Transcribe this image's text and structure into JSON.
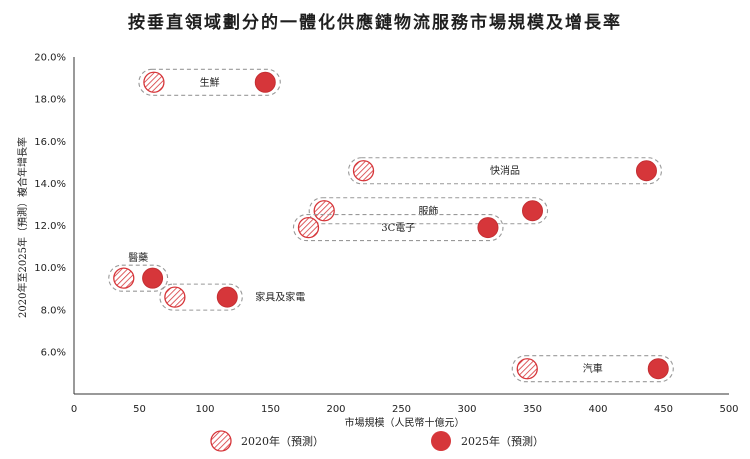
{
  "chart_data": {
    "type": "scatter",
    "title": "按垂直領域劃分的一體化供應鏈物流服務市場規模及增長率",
    "xlabel": "市場規模（人民幣十億元）",
    "ylabel": "2020年至2025年（預測）複合年增長率",
    "xlim": [
      0,
      500
    ],
    "ylim": [
      4.0,
      20.0
    ],
    "x_ticks": [
      "0",
      "50",
      "100",
      "150",
      "200",
      "250",
      "300",
      "350",
      "400",
      "450",
      "500"
    ],
    "y_ticks": [
      "6.0%",
      "8.0%",
      "10.0%",
      "12.0%",
      "14.0%",
      "16.0%",
      "18.0%",
      "20.0%"
    ],
    "grid": false,
    "legend_position": "bottom",
    "series": [
      {
        "name": "2020年（預測）",
        "style": "hatched",
        "color": "#d6363a"
      },
      {
        "name": "2025年（預測）",
        "style": "solid",
        "color": "#d6363a"
      }
    ],
    "categories": [
      {
        "label": "生鮮",
        "x2020": 61,
        "x2025": 146,
        "cagr": 18.8,
        "label_pos": "inside"
      },
      {
        "label": "快消品",
        "x2020": 221,
        "x2025": 437,
        "cagr": 14.6,
        "label_pos": "inside"
      },
      {
        "label": "服飾",
        "x2020": 191,
        "x2025": 350,
        "cagr": 12.7,
        "label_pos": "inside"
      },
      {
        "label": "3C電子",
        "x2020": 179,
        "x2025": 316,
        "cagr": 11.9,
        "label_pos": "inside"
      },
      {
        "label": "醫藥",
        "x2020": 38,
        "x2025": 60,
        "cagr": 9.5,
        "label_pos": "above"
      },
      {
        "label": "家具及家電",
        "x2020": 77,
        "x2025": 117,
        "cagr": 8.6,
        "label_pos": "right"
      },
      {
        "label": "汽車",
        "x2020": 346,
        "x2025": 446,
        "cagr": 5.2,
        "label_pos": "inside"
      }
    ]
  }
}
